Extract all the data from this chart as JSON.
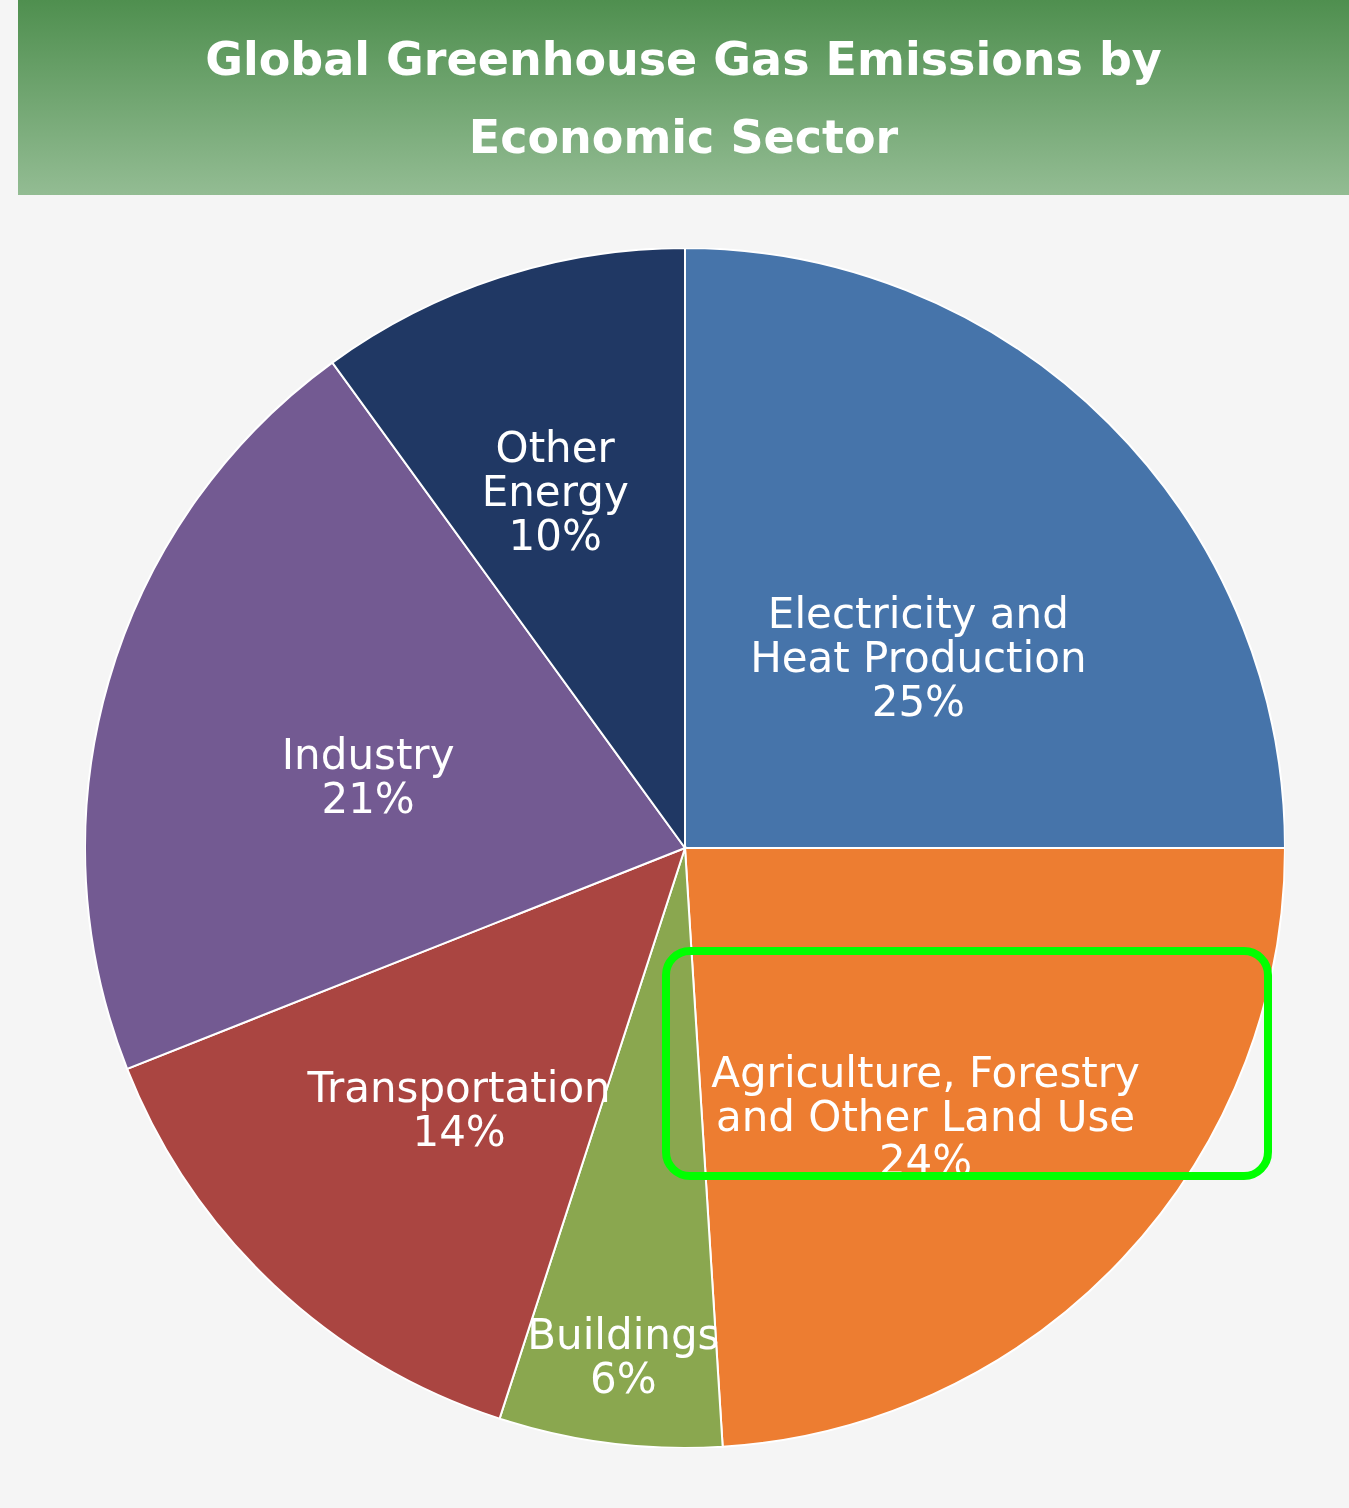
{
  "chart_data": {
    "type": "pie",
    "title": "Global Greenhouse Gas Emissions by Economic Sector",
    "categories": [
      "Electricity and Heat Production",
      "Agriculture, Forestry and Other Land Use",
      "Buildings",
      "Transportation",
      "Industry",
      "Other Energy"
    ],
    "values": [
      25,
      24,
      6,
      14,
      21,
      10
    ],
    "value_labels": [
      "25%",
      "24%",
      "6%",
      "14%",
      "21%",
      "10%"
    ],
    "colors": [
      "#4674aa",
      "#ed7d31",
      "#8aa74f",
      "#aa4541",
      "#735a92",
      "#203864"
    ]
  }
}
